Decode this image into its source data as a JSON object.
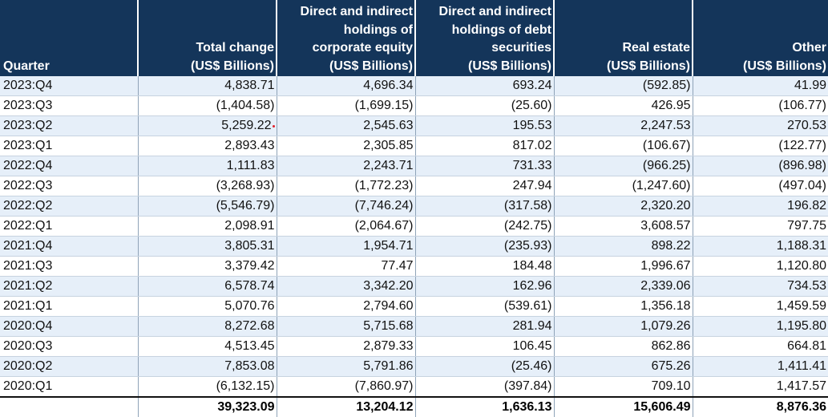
{
  "headers": [
    [
      "Quarter"
    ],
    [
      "Total change",
      "(US$ Billions)"
    ],
    [
      "Direct and indirect",
      "holdings of",
      "corporate equity",
      "(US$ Billions)"
    ],
    [
      "Direct and indirect",
      "holdings of debt",
      "securities",
      "(US$ Billions)"
    ],
    [
      "Real estate",
      "(US$ Billions)"
    ],
    [
      "Other",
      "(US$ Billions)"
    ]
  ],
  "rows": [
    [
      "2023:Q4",
      "4,838.71",
      "4,696.34",
      "693.24",
      "(592.85)",
      "41.99"
    ],
    [
      "2023:Q3",
      "(1,404.58)",
      "(1,699.15)",
      "(25.60)",
      "426.95",
      "(106.77)"
    ],
    [
      "2023:Q2",
      "5,259.22",
      "2,545.63",
      "195.53",
      "2,247.53",
      "270.53"
    ],
    [
      "2023:Q1",
      "2,893.43",
      "2,305.85",
      "817.02",
      "(106.67)",
      "(122.77)"
    ],
    [
      "2022:Q4",
      "1,111.83",
      "2,243.71",
      "731.33",
      "(966.25)",
      "(896.98)"
    ],
    [
      "2022:Q3",
      "(3,268.93)",
      "(1,772.23)",
      "247.94",
      "(1,247.60)",
      "(497.04)"
    ],
    [
      "2022:Q2",
      "(5,546.79)",
      "(7,746.24)",
      "(317.58)",
      "2,320.20",
      "196.82"
    ],
    [
      "2022:Q1",
      "2,098.91",
      "(2,064.67)",
      "(242.75)",
      "3,608.57",
      "797.75"
    ],
    [
      "2021:Q4",
      "3,805.31",
      "1,954.71",
      "(235.93)",
      "898.22",
      "1,188.31"
    ],
    [
      "2021:Q3",
      "3,379.42",
      "77.47",
      "184.48",
      "1,996.67",
      "1,120.80"
    ],
    [
      "2021:Q2",
      "6,578.74",
      "3,342.20",
      "162.96",
      "2,339.06",
      "734.53"
    ],
    [
      "2021:Q1",
      "5,070.76",
      "2,794.60",
      "(539.61)",
      "1,356.18",
      "1,459.59"
    ],
    [
      "2020:Q4",
      "8,272.68",
      "5,715.68",
      "281.94",
      "1,079.26",
      "1,195.80"
    ],
    [
      "2020:Q3",
      "4,513.45",
      "2,879.33",
      "106.45",
      "862.86",
      "664.81"
    ],
    [
      "2020:Q2",
      "7,853.08",
      "5,791.86",
      "(25.46)",
      "675.26",
      "1,411.41"
    ],
    [
      "2020:Q1",
      "(6,132.15)",
      "(7,860.97)",
      "(397.84)",
      "709.10",
      "1,417.57"
    ]
  ],
  "totals": [
    "",
    "39,323.09",
    "13,204.12",
    "1,636.13",
    "15,606.49",
    "8,876.36"
  ],
  "colors": {
    "header_bg": "#14355a",
    "row_alt_bg": "#e6eff9",
    "marker": "#e0202a"
  }
}
